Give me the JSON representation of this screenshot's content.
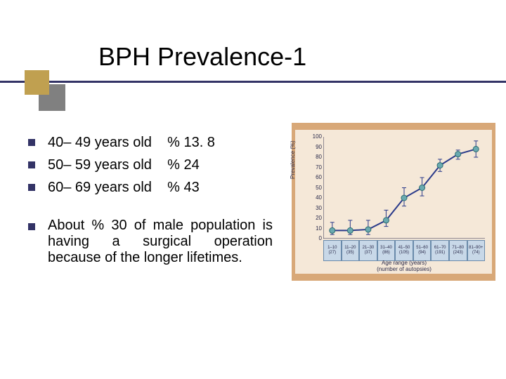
{
  "title": "BPH Prevalence-1",
  "bullets": [
    "40– 49 years old    % 13. 8",
    "50– 59 years old    % 24",
    "60– 69 years old    % 43"
  ],
  "paragraph": "About % 30 of male population is having a surgical operation because of the longer lifetimes.",
  "chart": {
    "ylabel": "Prevalence (%)",
    "ylim": [
      0,
      100
    ],
    "ytick_step": 10,
    "yticks": [
      0,
      10,
      20,
      30,
      40,
      50,
      60,
      70,
      80,
      90,
      100
    ],
    "categories": [
      {
        "range": "1–10",
        "n": "(27)"
      },
      {
        "range": "11–20",
        "n": "(35)"
      },
      {
        "range": "21–30",
        "n": "(37)"
      },
      {
        "range": "31–40",
        "n": "(86)"
      },
      {
        "range": "41–50",
        "n": "(105)"
      },
      {
        "range": "51–60",
        "n": "(94)"
      },
      {
        "range": "61–70",
        "n": "(191)"
      },
      {
        "range": "71–80",
        "n": "(243)"
      },
      {
        "range": "81–90+",
        "n": "(74)"
      }
    ],
    "values": [
      8,
      8,
      9,
      18,
      40,
      50,
      72,
      83,
      88
    ],
    "err_low": [
      4,
      4,
      4,
      12,
      32,
      42,
      66,
      78,
      80
    ],
    "err_high": [
      16,
      18,
      18,
      28,
      50,
      60,
      78,
      87,
      96
    ],
    "line_color": "#2a3a8a",
    "marker_color": "#6aaab0",
    "marker_stroke": "#2a6a70",
    "marker_radius": 4,
    "line_width": 2,
    "plot_bg": "#f5e8d8",
    "outer_bg": "#d8a878",
    "grid_color": "#6a8aaa",
    "text_color": "#2a2a4a",
    "xaxis_label": "Age range (years)\n(number of autopsies)",
    "xaxis_label_lines": [
      "Age range (years)",
      "(number of autopsies)"
    ]
  },
  "colors": {
    "title_underline": "#333366",
    "bullet": "#333366",
    "decor_gold": "#c0a050",
    "decor_gray": "#808080"
  }
}
